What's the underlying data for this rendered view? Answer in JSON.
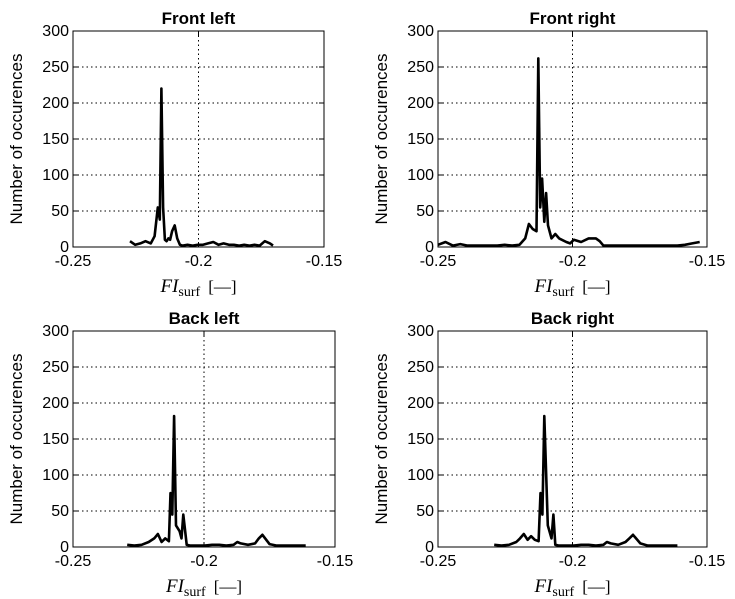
{
  "chart_data": [
    {
      "type": "line",
      "title": "Front left",
      "xlabel": "FIsurf [—]",
      "xlabel_main": "FI",
      "xlabel_sub": "surf",
      "xlabel_unit": "[—]",
      "ylabel": "Number of occurences",
      "xlim": [
        -0.25,
        -0.15
      ],
      "ylim": [
        0,
        300
      ],
      "xticks": [
        "-0.25",
        "-0.2",
        "-0.15"
      ],
      "yticks": [
        "0",
        "50",
        "100",
        "150",
        "200",
        "250",
        "300"
      ],
      "grid": true,
      "color": "#000000",
      "x": [
        -0.2273,
        -0.2252,
        -0.2232,
        -0.2211,
        -0.219,
        -0.2175,
        -0.2162,
        -0.2154,
        -0.2148,
        -0.2141,
        -0.2134,
        -0.2127,
        -0.212,
        -0.2113,
        -0.2105,
        -0.2095,
        -0.2085,
        -0.2074,
        -0.2064,
        -0.2044,
        -0.2023,
        -0.2003,
        -0.1982,
        -0.1962,
        -0.1941,
        -0.192,
        -0.19,
        -0.1879,
        -0.1859,
        -0.1838,
        -0.1818,
        -0.1797,
        -0.1777,
        -0.1756,
        -0.1736,
        -0.1715,
        -0.1703
      ],
      "y": [
        8,
        3,
        5,
        8,
        5,
        15,
        55,
        38,
        220,
        55,
        10,
        8,
        12,
        10,
        22,
        30,
        12,
        3,
        2,
        3,
        2,
        3,
        3,
        5,
        7,
        3,
        5,
        3,
        3,
        2,
        3,
        2,
        3,
        2,
        8,
        5,
        2
      ]
    },
    {
      "type": "line",
      "title": "Front right",
      "xlabel": "FIsurf [—]",
      "xlabel_main": "FI",
      "xlabel_sub": "surf",
      "xlabel_unit": "[—]",
      "ylabel": "Number of occurences",
      "xlim": [
        -0.25,
        -0.15
      ],
      "ylim": [
        0,
        300
      ],
      "xticks": [
        "-0.25",
        "-0.2",
        "-0.15"
      ],
      "yticks": [
        "0",
        "50",
        "100",
        "150",
        "200",
        "250",
        "300"
      ],
      "grid": true,
      "color": "#000000",
      "x": [
        -0.25,
        -0.2472,
        -0.2445,
        -0.2417,
        -0.239,
        -0.2362,
        -0.2334,
        -0.2307,
        -0.2279,
        -0.2252,
        -0.2224,
        -0.2197,
        -0.2176,
        -0.2162,
        -0.2148,
        -0.2134,
        -0.2127,
        -0.212,
        -0.2113,
        -0.2105,
        -0.2098,
        -0.2091,
        -0.2078,
        -0.2064,
        -0.205,
        -0.2023,
        -0.2009,
        -0.1995,
        -0.1968,
        -0.194,
        -0.1913,
        -0.1899,
        -0.1885,
        -0.1858,
        -0.183,
        -0.1803,
        -0.1775,
        -0.1748,
        -0.172,
        -0.1693,
        -0.1665,
        -0.1638,
        -0.161,
        -0.1582,
        -0.1555,
        -0.1527
      ],
      "y": [
        3,
        7,
        2,
        4,
        2,
        2,
        2,
        2,
        2,
        3,
        2,
        3,
        12,
        32,
        25,
        22,
        262,
        55,
        95,
        35,
        75,
        30,
        12,
        18,
        12,
        7,
        5,
        10,
        7,
        12,
        12,
        8,
        2,
        2,
        2,
        2,
        2,
        2,
        2,
        2,
        2,
        2,
        2,
        3,
        5,
        7
      ]
    },
    {
      "type": "line",
      "title": "Back left",
      "xlabel": "FIsurf [—]",
      "xlabel_main": "FI",
      "xlabel_sub": "surf",
      "xlabel_unit": "[—]",
      "ylabel": "Number of occurences",
      "xlim": [
        -0.25,
        -0.15
      ],
      "ylim": [
        0,
        300
      ],
      "xticks": [
        "-0.25",
        "-0.2",
        "-0.15"
      ],
      "yticks": [
        "0",
        "50",
        "100",
        "150",
        "200",
        "250",
        "300"
      ],
      "grid": true,
      "color": "#000000",
      "x": [
        -0.2293,
        -0.2266,
        -0.2238,
        -0.2211,
        -0.219,
        -0.2176,
        -0.2162,
        -0.2148,
        -0.2134,
        -0.2128,
        -0.2121,
        -0.2114,
        -0.2107,
        -0.2093,
        -0.2086,
        -0.2079,
        -0.2066,
        -0.2052,
        -0.2024,
        -0.1997,
        -0.1969,
        -0.1942,
        -0.1915,
        -0.1887,
        -0.1873,
        -0.186,
        -0.1832,
        -0.1805,
        -0.1791,
        -0.1777,
        -0.175,
        -0.1722,
        -0.1695,
        -0.1667,
        -0.164,
        -0.1612
      ],
      "y": [
        3,
        2,
        3,
        7,
        12,
        18,
        7,
        12,
        8,
        75,
        45,
        182,
        30,
        22,
        12,
        45,
        3,
        2,
        2,
        2,
        3,
        3,
        2,
        3,
        7,
        5,
        3,
        5,
        12,
        17,
        4,
        2,
        2,
        2,
        2,
        2
      ]
    },
    {
      "type": "line",
      "title": "Back right",
      "xlabel": "FIsurf [—]",
      "xlabel_main": "FI",
      "xlabel_sub": "surf",
      "xlabel_unit": "[—]",
      "ylabel": "Number of occurences",
      "xlim": [
        -0.25,
        -0.15
      ],
      "ylim": [
        0,
        300
      ],
      "xticks": [
        "-0.25",
        "-0.2",
        "-0.15"
      ],
      "yticks": [
        "0",
        "50",
        "100",
        "150",
        "200",
        "250",
        "300"
      ],
      "grid": true,
      "color": "#000000",
      "x": [
        -0.2291,
        -0.2264,
        -0.2236,
        -0.2209,
        -0.2195,
        -0.2181,
        -0.2167,
        -0.2154,
        -0.214,
        -0.2126,
        -0.2119,
        -0.2112,
        -0.2105,
        -0.2092,
        -0.2078,
        -0.2071,
        -0.2064,
        -0.205,
        -0.2023,
        -0.1995,
        -0.1968,
        -0.194,
        -0.1913,
        -0.1885,
        -0.1872,
        -0.1858,
        -0.183,
        -0.1803,
        -0.1789,
        -0.1775,
        -0.1748,
        -0.172,
        -0.1693,
        -0.1665,
        -0.1638,
        -0.161
      ],
      "y": [
        3,
        2,
        3,
        7,
        12,
        18,
        10,
        15,
        10,
        8,
        75,
        45,
        182,
        30,
        12,
        45,
        3,
        2,
        2,
        2,
        3,
        3,
        2,
        3,
        7,
        5,
        3,
        7,
        12,
        17,
        5,
        2,
        2,
        2,
        2,
        2
      ]
    }
  ]
}
